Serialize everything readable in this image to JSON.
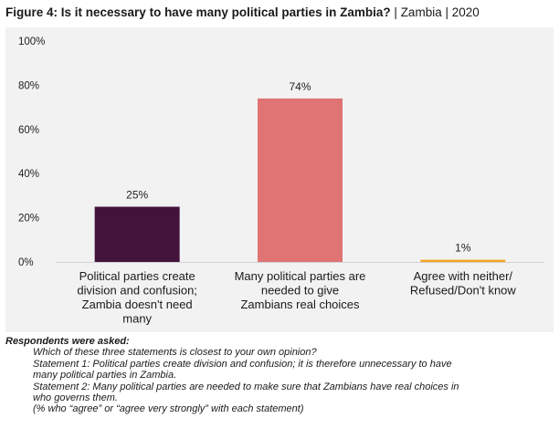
{
  "figure": {
    "title": "Figure 4: Is it necessary to have many political parties in Zambia?",
    "separator": "|",
    "country": "Zambia",
    "year": "2020"
  },
  "chart_data": {
    "type": "bar",
    "categories": [
      [
        "Political parties create",
        "division and confusion;",
        "Zambia doesn't need",
        "many"
      ],
      [
        "Many political parties are",
        "needed to give",
        "Zambians real choices"
      ],
      [
        "Agree with neither/",
        "Refused/Don't know"
      ]
    ],
    "values": [
      25,
      74,
      1
    ],
    "value_labels": [
      "25%",
      "74%",
      "1%"
    ],
    "colors": [
      "#44133b",
      "#e07373",
      "#f5a623"
    ],
    "ylim": [
      0,
      100
    ],
    "yticks": [
      0,
      20,
      40,
      60,
      80,
      100
    ],
    "ytick_labels": [
      "0%",
      "20%",
      "40%",
      "60%",
      "80%",
      "100%"
    ],
    "grid": false,
    "legend": false
  },
  "notes": {
    "heading": "Respondents were asked:",
    "lines": [
      "Which of these three statements is closest to your own opinion?",
      "Statement 1: Political parties create division and confusion; it is therefore unnecessary to have",
      "many political parties in Zambia.",
      "Statement 2: Many political parties are needed to make sure that Zambians have real choices in",
      "who governs them.",
      "(% who “agree” or “agree very strongly” with each statement)"
    ]
  }
}
